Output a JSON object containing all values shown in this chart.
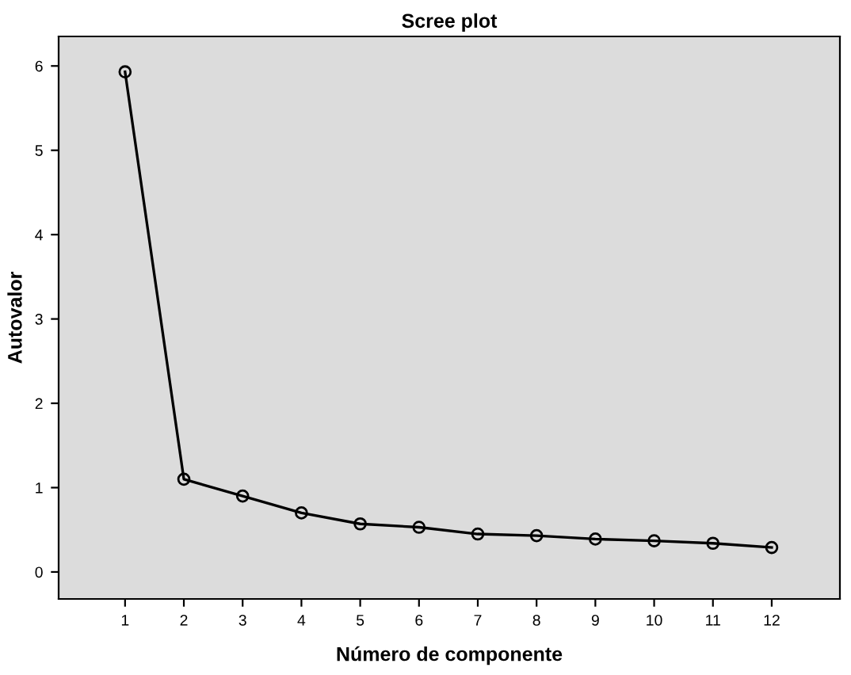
{
  "chart_data": {
    "type": "line",
    "title": "Scree plot",
    "xlabel": "Número de componente",
    "ylabel": "Autovalor",
    "x": [
      1,
      2,
      3,
      4,
      5,
      6,
      7,
      8,
      9,
      10,
      11,
      12
    ],
    "series": [
      {
        "color": "#000000",
        "values": [
          5.93,
          1.1,
          0.9,
          0.7,
          0.57,
          0.53,
          0.45,
          0.43,
          0.39,
          0.37,
          0.34,
          0.29
        ]
      }
    ],
    "xlim": [
      -0.13,
      13.16
    ],
    "xticks": [
      1,
      2,
      3,
      4,
      5,
      6,
      7,
      8,
      9,
      10,
      11,
      12
    ],
    "ylim": [
      -0.32,
      6.35
    ],
    "yticks": [
      0,
      1,
      2,
      3,
      4,
      5,
      6
    ],
    "marker": "circle",
    "line_style": "solid",
    "grid": false,
    "legend": false
  }
}
